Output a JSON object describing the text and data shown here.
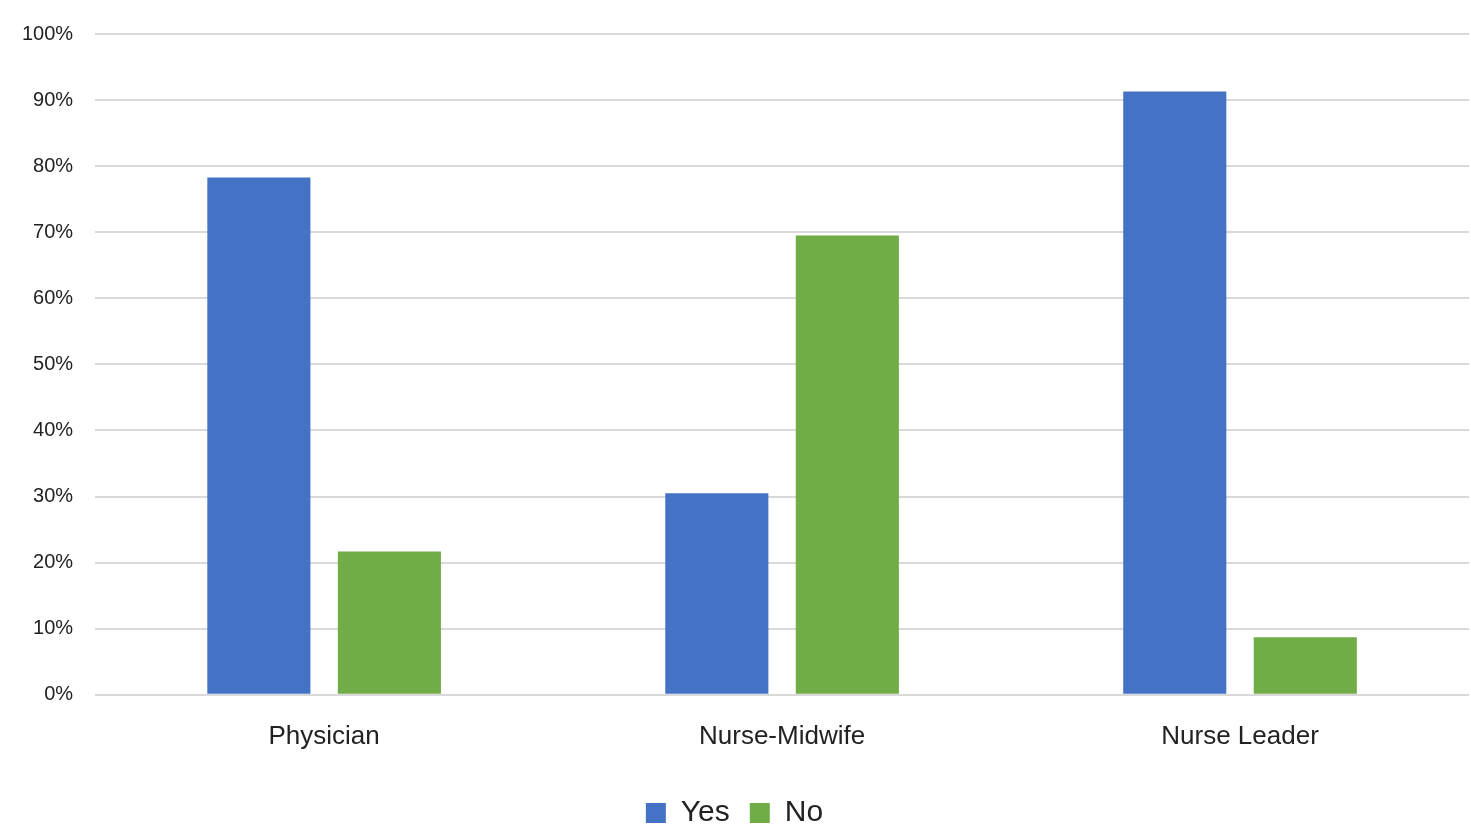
{
  "chart_data": {
    "type": "bar",
    "categories": [
      "Physician",
      "Nurse-Midwife",
      "Nurse Leader"
    ],
    "series": [
      {
        "name": "Yes",
        "color": "#4472c4",
        "values": [
          78.3,
          30.5,
          91.3
        ]
      },
      {
        "name": "No",
        "color": "#70ad47",
        "values": [
          21.7,
          69.5,
          8.7
        ]
      }
    ],
    "ylim": [
      0,
      100
    ],
    "yticks": [
      {
        "value": 0,
        "label": "0%"
      },
      {
        "value": 10,
        "label": "10%"
      },
      {
        "value": 20,
        "label": "20%"
      },
      {
        "value": 30,
        "label": "30%"
      },
      {
        "value": 40,
        "label": "40%"
      },
      {
        "value": 50,
        "label": "50%"
      },
      {
        "value": 60,
        "label": "60%"
      },
      {
        "value": 70,
        "label": "70%"
      },
      {
        "value": 80,
        "label": "80%"
      },
      {
        "value": 90,
        "label": "90%"
      },
      {
        "value": 100,
        "label": "100%"
      }
    ],
    "grid": "y",
    "legend": "bottom"
  }
}
